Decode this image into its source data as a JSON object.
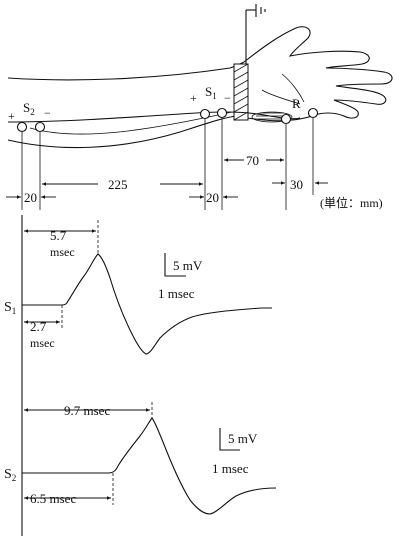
{
  "figure": {
    "electrodes": {
      "s2": {
        "label": "S",
        "sub": "2",
        "plus": "+",
        "minus": "−"
      },
      "s1": {
        "label": "S",
        "sub": "1",
        "plus": "+",
        "minus": "−"
      },
      "r": "R"
    },
    "distances": {
      "s2_gap": "20",
      "s2_to_s1": "225",
      "s1_gap": "20",
      "s1_to_r": "70",
      "r_gap": "30",
      "unit": "(単位：mm)"
    },
    "trace_s1": {
      "label": "S",
      "sub": "1",
      "peak_latency": "5.7",
      "peak_latency_unit": "msec",
      "onset_latency": "2.7",
      "onset_latency_unit": "msec",
      "scale_amp": "5 mV",
      "scale_time": "1 msec"
    },
    "trace_s2": {
      "label": "S",
      "sub": "2",
      "peak_latency": "9.7 msec",
      "onset_latency": "6.5 msec",
      "scale_amp": "5 mV",
      "scale_time": "1 msec"
    }
  }
}
